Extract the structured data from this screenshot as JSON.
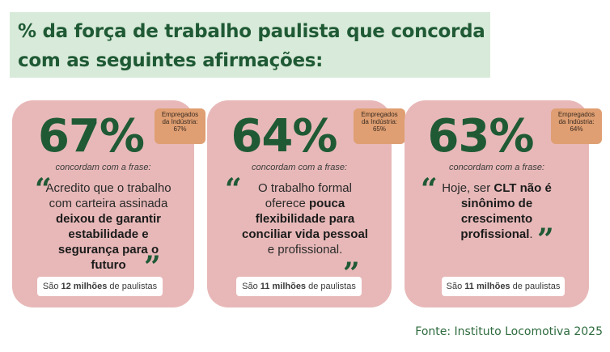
{
  "title": "% da força de trabalho paulista que concorda com as seguintes afirmações:",
  "cards": [
    {
      "percent": "67%",
      "badge": [
        "Empregados",
        "da Indústria:",
        "67%"
      ],
      "concord": "concordam com a frase:",
      "quote": [
        {
          "t": "Acredito que o trabalho com carteira assinada ",
          "b": false
        },
        {
          "t": "deixou de garantir estabilidade e segurança para o futuro",
          "b": true
        }
      ],
      "pill": {
        "pre": "São ",
        "bold": "12 milhões",
        "post": " de paulistas"
      }
    },
    {
      "percent": "64%",
      "badge": [
        "Empregados",
        "da Indústria:",
        "65%"
      ],
      "concord": "concordam com a frase:",
      "quote": [
        {
          "t": "O trabalho formal oferece ",
          "b": false
        },
        {
          "t": "pouca flexibilidade para conciliar vida pessoal",
          "b": true
        },
        {
          "t": " e profissional.",
          "b": false
        }
      ],
      "pill": {
        "pre": "São ",
        "bold": "11 milhões",
        "post": " de paulistas"
      }
    },
    {
      "percent": "63%",
      "badge": [
        "Empregados",
        "da Indústria:",
        "64%"
      ],
      "concord": "concordam com a frase:",
      "quote": [
        {
          "t": "Hoje, ser ",
          "b": false
        },
        {
          "t": "CLT não é sinônimo de crescimento profissional",
          "b": true
        },
        {
          "t": ".",
          "b": false
        }
      ],
      "pill": {
        "pre": "São ",
        "bold": "11 milhões",
        "post": " de paulistas"
      }
    }
  ],
  "quote_open": "“",
  "quote_close": "”",
  "source": "Fonte: Instituto Locomotiva 2025",
  "colors": {
    "green": "#1f5a35",
    "card": "#e8b8b8",
    "badge": "#df9f72",
    "title_bg": "#d8ead9"
  }
}
